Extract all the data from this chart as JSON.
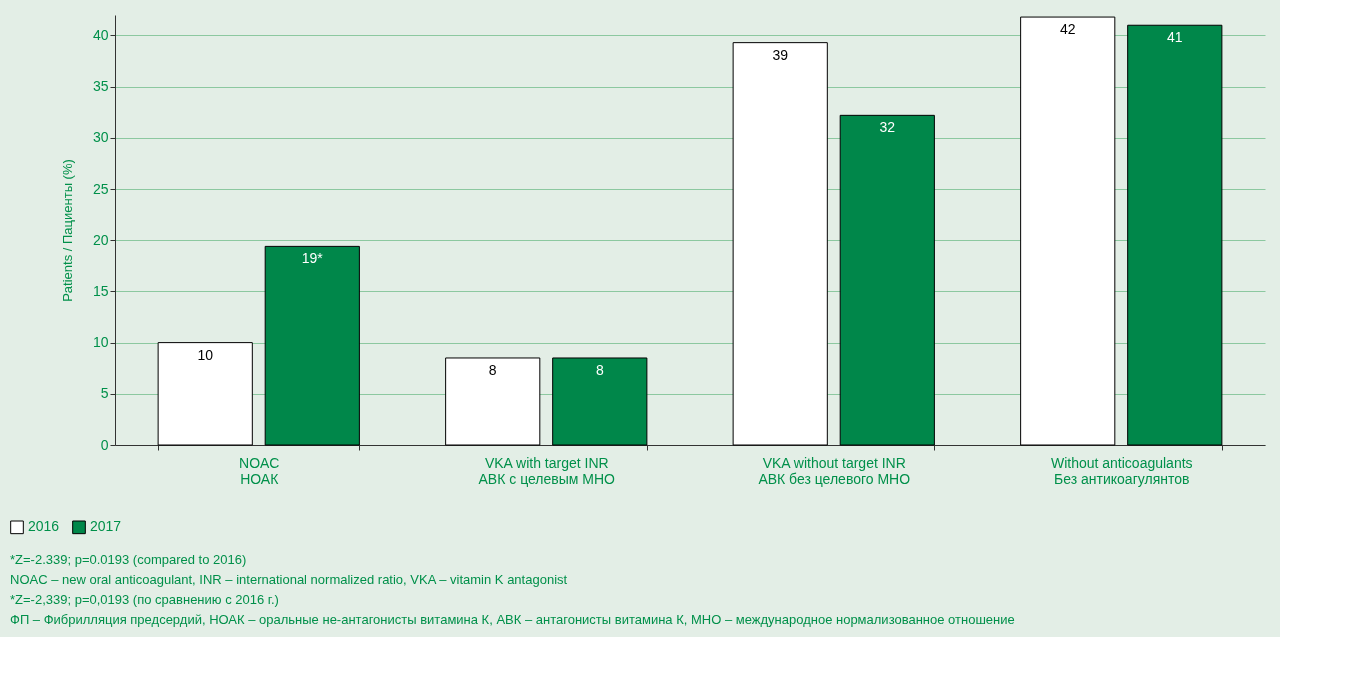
{
  "chart_data": {
    "type": "bar",
    "ylabel": "Patients / Пациенты (%)",
    "categories": [
      "NOAC\nНОАК",
      "VKA with target INR\nАВК с целевым МНО",
      "VKA without target INR\nАВК без целевого МНО",
      "Without anticoagulants\nБез антикоагулянтов"
    ],
    "series": [
      {
        "name": "2016",
        "color": "#ffffff",
        "values": [
          10,
          8.5,
          39.3,
          41.8
        ],
        "value_labels": [
          "10",
          "8",
          "39",
          "42"
        ]
      },
      {
        "name": "2017",
        "color": "#00874a",
        "values": [
          19.4,
          8.5,
          32.2,
          41.0
        ],
        "value_labels": [
          "19*",
          "8",
          "32",
          "41"
        ]
      }
    ],
    "ylim": [
      0,
      42
    ],
    "yticks": [
      0,
      5,
      10,
      15,
      20,
      25,
      30,
      35,
      40
    ],
    "grid": "y",
    "legend": "bottom left",
    "annotations": [
      "*Z=-2.339; p=0.0193 (compared to 2016)",
      "NOAC – new oral anticoagulant, INR – international normalized ratio, VKA – vitamin K antagonist",
      "*Z=-2,339; p=0,0193 (по сравнению с 2016 г.)",
      "ФП – Фибрилляция предсердий, НОАК – оральные не-антагонисты витамина К, АВК – антагонисты витамина К, МНО – международное нормализованное отношение"
    ]
  }
}
